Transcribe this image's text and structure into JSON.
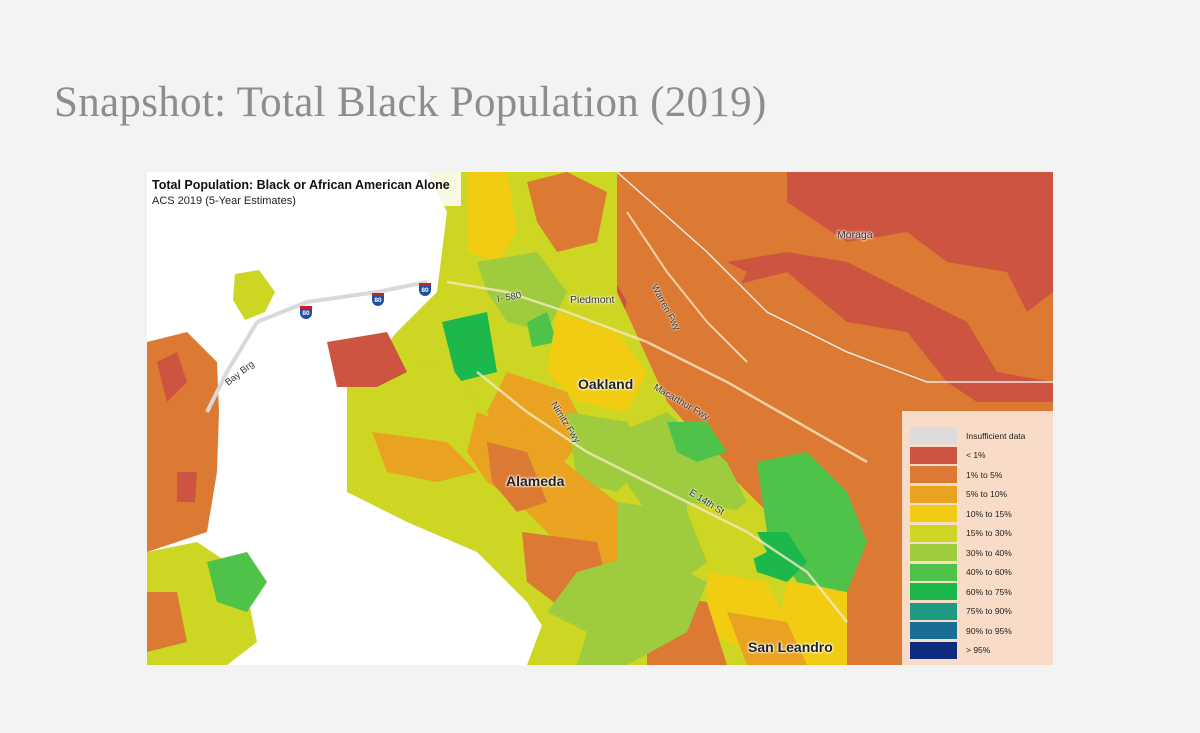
{
  "slide": {
    "title": "Snapshot: Total Black Population (2019)"
  },
  "map": {
    "title": "Total Population: Black or African American Alone",
    "subtitle": "ACS 2019 (5-Year Estimates)",
    "places": {
      "oakland": "Oakland",
      "alameda": "Alameda",
      "san_leandro": "San Leandro",
      "piedmont": "Piedmont",
      "moraga": "Moraga"
    },
    "roads": {
      "i580": "I- 580",
      "warren": "Warren Fwy",
      "macarthur": "Macarthur Fwy",
      "nimitz": "Nimitz Fwy",
      "e14th": "E 14th St",
      "bay_bridge": "Bay Brg"
    },
    "shields": [
      "80",
      "80",
      "80"
    ],
    "legend": [
      {
        "label": "Insufficient data",
        "color": "#dcdcdc"
      },
      {
        "label": "< 1%",
        "color": "#cc5440"
      },
      {
        "label": "1% to 5%",
        "color": "#dc7a33"
      },
      {
        "label": "5% to 10%",
        "color": "#eaa221"
      },
      {
        "label": "10% to 15%",
        "color": "#f2cc12"
      },
      {
        "label": "15% to 30%",
        "color": "#cdd623"
      },
      {
        "label": "30% to 40%",
        "color": "#9fcc3e"
      },
      {
        "label": "40% to 60%",
        "color": "#4fc24a"
      },
      {
        "label": "60% to 75%",
        "color": "#1db84c"
      },
      {
        "label": "75% to 90%",
        "color": "#1f9a82"
      },
      {
        "label": "90% to 95%",
        "color": "#1b6e93"
      },
      {
        "label": "> 95%",
        "color": "#0f2b7d"
      }
    ]
  }
}
